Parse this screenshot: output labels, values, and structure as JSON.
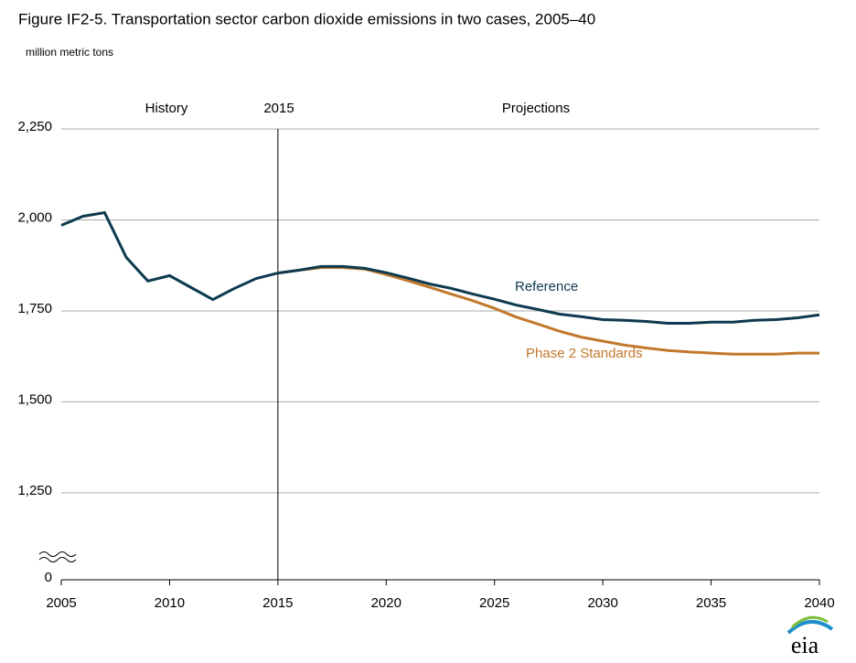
{
  "chart_data": {
    "type": "line",
    "title": "Figure IF2-5. Transportation sector carbon dioxide emissions in two cases, 2005–40",
    "subtitle": "million metric tons",
    "annotations": {
      "history": "History",
      "divider": "2015",
      "projections": "Projections"
    },
    "divider_x": 2015,
    "logo": "eia",
    "x": [
      2005,
      2006,
      2007,
      2008,
      2009,
      2010,
      2011,
      2012,
      2013,
      2014,
      2015,
      2016,
      2017,
      2018,
      2019,
      2020,
      2021,
      2022,
      2023,
      2024,
      2025,
      2026,
      2027,
      2028,
      2029,
      2030,
      2031,
      2032,
      2033,
      2034,
      2035,
      2036,
      2037,
      2038,
      2039,
      2040
    ],
    "series": [
      {
        "name": "Phase 2 Standards",
        "color": "#c2782c",
        "values": [
          null,
          null,
          null,
          null,
          null,
          null,
          null,
          null,
          null,
          null,
          1854,
          1862,
          1869,
          1869,
          1865,
          1850,
          1833,
          1815,
          1796,
          1778,
          1757,
          1733,
          1714,
          1694,
          1678,
          1667,
          1656,
          1648,
          1641,
          1637,
          1634,
          1631,
          1631,
          1631,
          1634,
          1634
        ]
      },
      {
        "name": "Reference",
        "color": "#0d3a4f",
        "values": [
          1985,
          2010,
          2020,
          1897,
          1832,
          1847,
          1814,
          1781,
          1812,
          1839,
          1854,
          1862,
          1872,
          1872,
          1867,
          1855,
          1840,
          1824,
          1812,
          1796,
          1782,
          1766,
          1754,
          1741,
          1734,
          1726,
          1724,
          1721,
          1716,
          1716,
          1719,
          1719,
          1724,
          1726,
          1731,
          1739
        ]
      }
    ],
    "xlim": [
      2005,
      2040
    ],
    "xticks": [
      2005,
      2010,
      2015,
      2020,
      2025,
      2030,
      2035,
      2040
    ],
    "ylim": [
      1011,
      2250
    ],
    "yticks": [
      0,
      {
        "value": 1250,
        "label": "1,250"
      },
      {
        "value": 1500,
        "label": "1,500"
      },
      {
        "value": 1750,
        "label": "1,750"
      },
      {
        "value": 2000,
        "label": "2,000"
      },
      {
        "value": 2250,
        "label": "2,250"
      }
    ],
    "axis_break": true,
    "grid": true
  }
}
